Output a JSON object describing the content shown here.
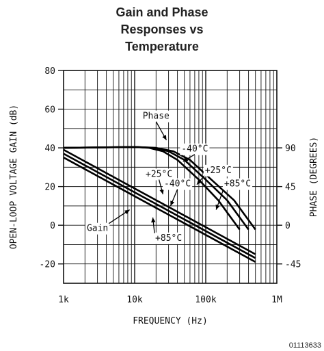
{
  "chart_data": {
    "type": "line",
    "title": [
      "Gain and Phase",
      "Responses vs",
      "Temperature"
    ],
    "xlabel": "FREQUENCY (Hz)",
    "ylabel": "OPEN-LOOP VOLTAGE GAIN (dB)",
    "ylabel_right": "PHASE (DEGREES)",
    "x_scale": "log",
    "xlim": [
      1000,
      1000000
    ],
    "ylim": [
      -30,
      80
    ],
    "y2lim": [
      -67.5,
      180
    ],
    "x_ticks": [
      {
        "value": 1000,
        "label": "1k"
      },
      {
        "value": 10000,
        "label": "10k"
      },
      {
        "value": 100000,
        "label": "100k"
      },
      {
        "value": 1000000,
        "label": "1M"
      }
    ],
    "y_ticks": [
      {
        "value": 80,
        "label": "80"
      },
      {
        "value": 60,
        "label": "60"
      },
      {
        "value": 40,
        "label": "40"
      },
      {
        "value": 20,
        "label": "20"
      },
      {
        "value": 0,
        "label": "0"
      },
      {
        "value": -20,
        "label": "-20"
      }
    ],
    "y2_ticks": [
      {
        "value": 90,
        "label": "90"
      },
      {
        "value": 45,
        "label": "45"
      },
      {
        "value": 0,
        "label": "0"
      },
      {
        "value": -45,
        "label": "-45"
      }
    ],
    "grid": true,
    "series": [
      {
        "group": "gain",
        "x": [
          1000,
          10000,
          100000,
          500000
        ],
        "y": [
          35,
          15,
          -5,
          -19
        ]
      },
      {
        "group": "gain",
        "x": [
          1000,
          10000,
          100000,
          500000
        ],
        "y": [
          37,
          17,
          -3,
          -17
        ]
      },
      {
        "group": "gain",
        "x": [
          1000,
          10000,
          100000,
          500000
        ],
        "y": [
          39,
          19,
          -1,
          -15
        ]
      },
      {
        "group": "phase",
        "x": [
          1000,
          10000,
          16000,
          25000,
          40000,
          80000,
          150000,
          300000
        ],
        "y": [
          90,
          91,
          90,
          86,
          76,
          53,
          29,
          -5
        ]
      },
      {
        "group": "phase",
        "x": [
          1000,
          10000,
          18000,
          30000,
          50000,
          100000,
          200000,
          400000
        ],
        "y": [
          90,
          91,
          90,
          86,
          76,
          53,
          29,
          -5
        ]
      },
      {
        "group": "phase",
        "x": [
          1000,
          10000,
          20000,
          35000,
          60000,
          120000,
          250000,
          500000
        ],
        "y": [
          90,
          91,
          90,
          86,
          76,
          53,
          29,
          -5
        ]
      }
    ],
    "annotations": [
      {
        "text": "Phase",
        "x": 20000,
        "y": 55,
        "target_x": 28000,
        "target_y": 44
      },
      {
        "text": "-40°C",
        "x": 70000,
        "y": 38,
        "target_x": 48000,
        "target_y": 33
      },
      {
        "text": "+25°C",
        "x": 150000,
        "y": 27,
        "target_x": 75000,
        "target_y": 21
      },
      {
        "text": "+85°C",
        "x": 280000,
        "y": 20,
        "target_x": 140000,
        "target_y": 8
      },
      {
        "text": "+25°C",
        "x": 22000,
        "y": 25,
        "target_x": 25000,
        "target_y": 16
      },
      {
        "text": "-40°C",
        "x": 40000,
        "y": 20,
        "target_x": 32000,
        "target_y": 10
      },
      {
        "text": "Gain",
        "x": 3000,
        "y": -3,
        "target_x": 8500,
        "target_y": 8
      },
      {
        "text": "+85°C",
        "x": 30000,
        "y": -8,
        "target_x": 18000,
        "target_y": 4
      }
    ],
    "figure_id": "01113633"
  }
}
